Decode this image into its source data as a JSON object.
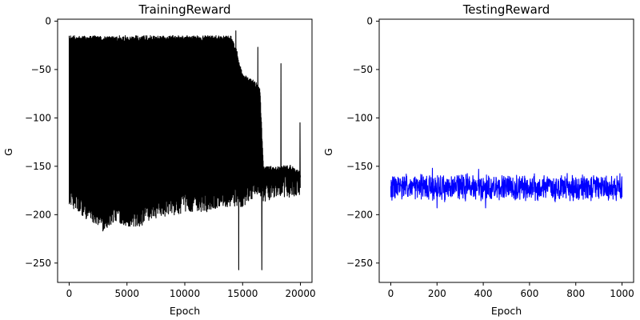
{
  "chart_data": [
    {
      "type": "line",
      "title": "TrainingReward",
      "xlabel": "Epoch",
      "ylabel": "G",
      "xlim": [
        -1000,
        21000
      ],
      "ylim": [
        -270,
        2
      ],
      "xticks": [
        0,
        5000,
        10000,
        15000,
        20000
      ],
      "yticks": [
        0,
        -50,
        -100,
        -150,
        -200,
        -250
      ],
      "xtick_labels": [
        "0",
        "5000",
        "10000",
        "15000",
        "20000"
      ],
      "ytick_labels": [
        "0",
        "−50",
        "−100",
        "−150",
        "−200",
        "−250"
      ],
      "line_color": "#000000",
      "grid": false,
      "envelope": [
        {
          "x": 0,
          "upper": -15,
          "lower": -197
        },
        {
          "x": 1000,
          "upper": -15,
          "lower": -210
        },
        {
          "x": 2000,
          "upper": -15,
          "lower": -215
        },
        {
          "x": 3000,
          "upper": -15,
          "lower": -226
        },
        {
          "x": 4000,
          "upper": -15,
          "lower": -215
        },
        {
          "x": 5000,
          "upper": -15,
          "lower": -220
        },
        {
          "x": 6000,
          "upper": -15,
          "lower": -222
        },
        {
          "x": 7000,
          "upper": -15,
          "lower": -214
        },
        {
          "x": 8000,
          "upper": -15,
          "lower": -210
        },
        {
          "x": 9000,
          "upper": -15,
          "lower": -210
        },
        {
          "x": 10000,
          "upper": -15,
          "lower": -205
        },
        {
          "x": 11000,
          "upper": -15,
          "lower": -205
        },
        {
          "x": 12000,
          "upper": -15,
          "lower": -205
        },
        {
          "x": 13000,
          "upper": -15,
          "lower": -200
        },
        {
          "x": 14000,
          "upper": -15,
          "lower": -200
        },
        {
          "x": 14500,
          "upper": -30,
          "lower": -200
        },
        {
          "x": 15000,
          "upper": -55,
          "lower": -200
        },
        {
          "x": 16000,
          "upper": -60,
          "lower": -190
        },
        {
          "x": 16500,
          "upper": -70,
          "lower": -190
        },
        {
          "x": 16800,
          "upper": -150,
          "lower": -195
        },
        {
          "x": 18000,
          "upper": -150,
          "lower": -190
        },
        {
          "x": 19000,
          "upper": -148,
          "lower": -190
        },
        {
          "x": 20000,
          "upper": -155,
          "lower": -190
        }
      ],
      "spikes": [
        {
          "x": 14400,
          "y": -10
        },
        {
          "x": 14650,
          "y": -257
        },
        {
          "x": 16300,
          "y": -27
        },
        {
          "x": 16650,
          "y": -257
        },
        {
          "x": 18300,
          "y": -44
        },
        {
          "x": 19950,
          "y": -105
        }
      ]
    },
    {
      "type": "line",
      "title": "TestingReward",
      "xlabel": "Epoch",
      "ylabel": "G",
      "xlim": [
        -50,
        1050
      ],
      "ylim": [
        -270,
        2
      ],
      "xticks": [
        0,
        200,
        400,
        600,
        800,
        1000
      ],
      "yticks": [
        0,
        -50,
        -100,
        -150,
        -200,
        -250
      ],
      "xtick_labels": [
        "0",
        "200",
        "400",
        "600",
        "800",
        "1000"
      ],
      "ytick_labels": [
        "0",
        "−50",
        "−100",
        "−150",
        "−200",
        "−250"
      ],
      "line_color": "#0000ff",
      "grid": false,
      "mean": -172,
      "range": [
        -193,
        -152
      ],
      "spikes": [
        {
          "x": 180,
          "y": -152
        },
        {
          "x": 380,
          "y": -153
        },
        {
          "x": 410,
          "y": -193
        },
        {
          "x": 200,
          "y": -193
        }
      ]
    }
  ]
}
